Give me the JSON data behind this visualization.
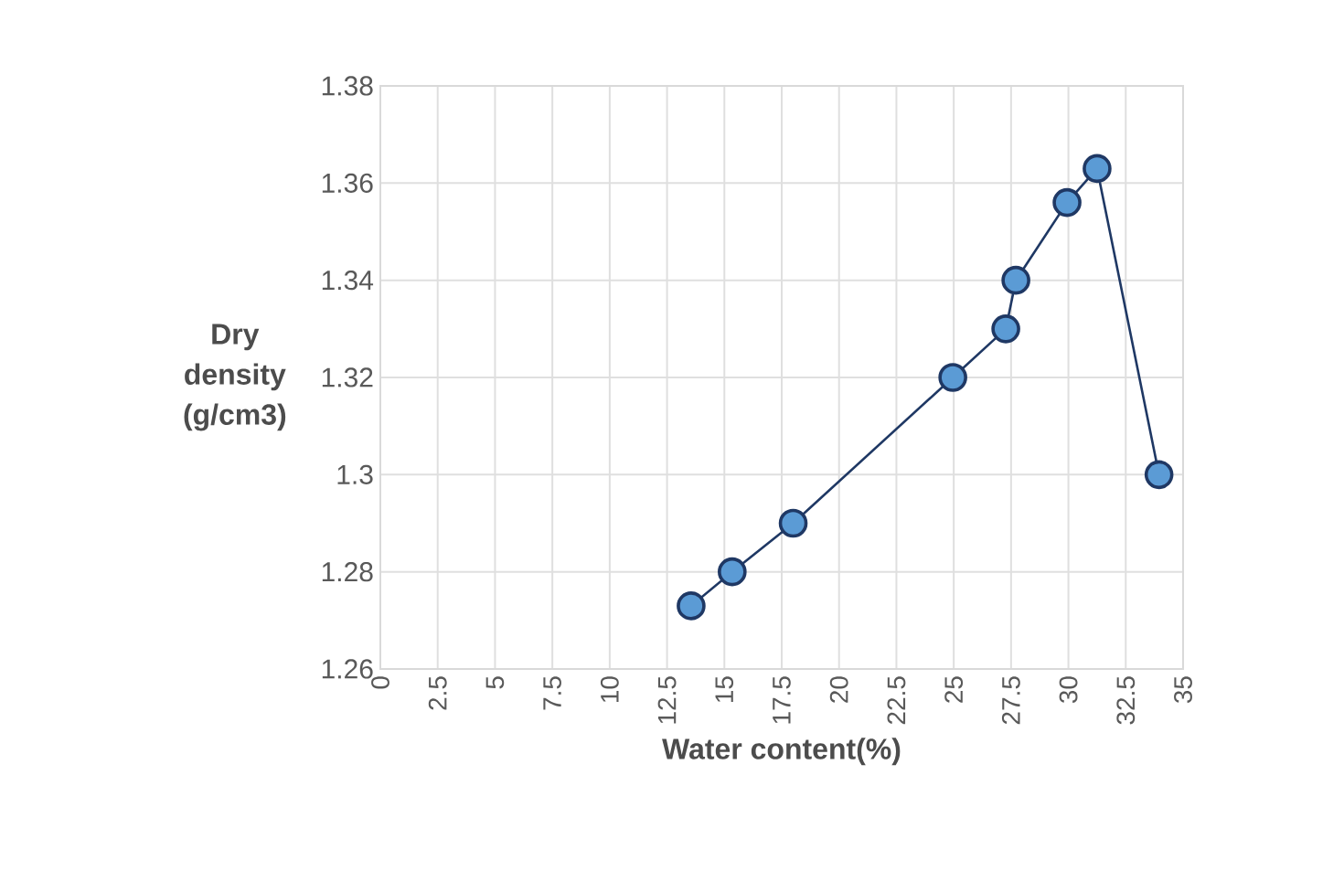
{
  "chart_data": {
    "type": "line",
    "xlabel": "Water content(%)",
    "ylabel": "Dry density (g/cm3)",
    "x": [
      13.55,
      15.34,
      18.0,
      24.96,
      27.27,
      27.71,
      29.94,
      31.25,
      33.95
    ],
    "values": [
      1.273,
      1.28,
      1.29,
      1.32,
      1.33,
      1.34,
      1.356,
      1.363,
      1.3
    ],
    "color": "#1f3864",
    "xlim": [
      0,
      35
    ],
    "xticks": [
      0,
      2.5,
      5,
      7.5,
      10,
      12.5,
      15,
      17.5,
      20,
      22.5,
      25,
      27.5,
      30,
      32.5,
      35
    ],
    "ylim": [
      1.26,
      1.38
    ],
    "yticks": [
      1.26,
      1.28,
      1.3,
      1.32,
      1.34,
      1.36,
      1.38
    ],
    "grid": true,
    "marker": "circle",
    "line_style": "solid"
  }
}
